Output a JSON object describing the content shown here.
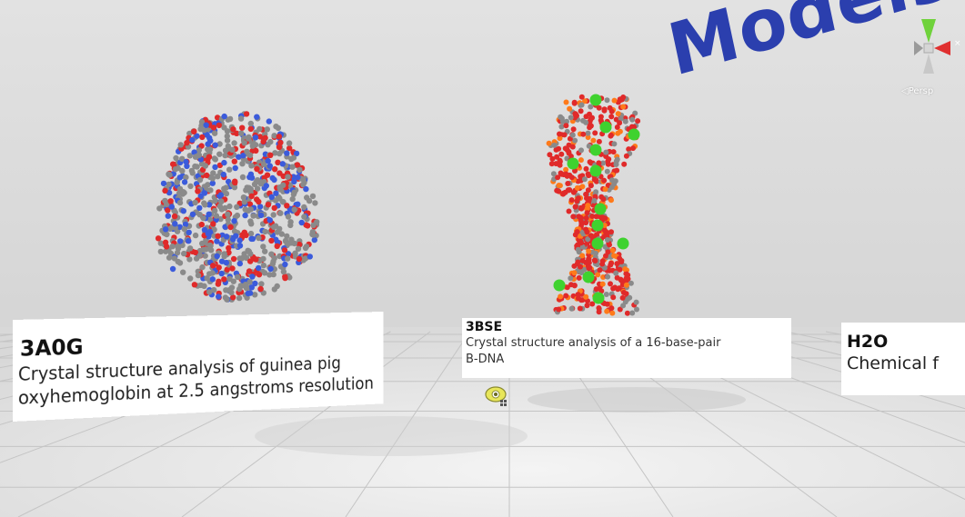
{
  "scene_title": "Models",
  "view_label": "◁Persp",
  "colors": {
    "title": "#2b3fae",
    "carbon": "#8a8a8a",
    "oxygen": "#e02a2a",
    "nitrogen": "#3b5bdb",
    "phosphorus": "#ff7a1a",
    "metal": "#3fd22f"
  },
  "panels": [
    {
      "id": "3A0G",
      "description_line1": "Crystal structure analysis of guinea pig",
      "description_line2": "oxyhemoglobin at 2.5 angstroms resolution"
    },
    {
      "id": "3BSE",
      "description_line1": "Crystal structure analysis of a 16-base-pair",
      "description_line2": "B-DNA"
    },
    {
      "id": "H2O",
      "description_line1": "Chemical f"
    }
  ],
  "icons": {
    "gizmo": "scene-orientation-gizmo-icon",
    "eye": "eye-icon"
  }
}
